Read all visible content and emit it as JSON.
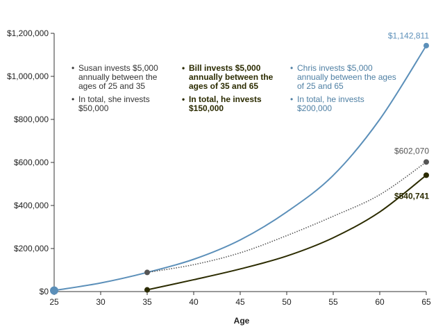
{
  "chart_data": {
    "type": "line",
    "title": "",
    "xlabel": "Age",
    "ylabel": "",
    "xlim": [
      25,
      65
    ],
    "ylim": [
      0,
      1200000
    ],
    "xticks": [
      "25",
      "30",
      "35",
      "40",
      "45",
      "50",
      "55",
      "60",
      "65"
    ],
    "yticks": [
      "$0",
      "$200,000",
      "$400,000",
      "$600,000",
      "$800,000",
      "$1,000,000",
      "$1,200,000"
    ],
    "grid": false,
    "series": [
      {
        "key": "chris",
        "color": "#5b8fb9",
        "style": "solid",
        "end_label": "$1,142,811",
        "x": [
          25,
          30,
          35,
          40,
          45,
          50,
          55,
          60,
          65
        ],
        "y": [
          5000,
          40000,
          89000,
          150000,
          240000,
          370000,
          540000,
          800000,
          1142811
        ]
      },
      {
        "key": "susan",
        "color": "#555555",
        "style": "dotted",
        "end_label": "$602,070",
        "x": [
          35,
          40,
          45,
          50,
          55,
          60,
          65
        ],
        "y": [
          89000,
          125000,
          180000,
          260000,
          350000,
          450000,
          602070
        ]
      },
      {
        "key": "bill",
        "color": "#2b2b00",
        "style": "solid",
        "end_label": "$540,741",
        "x": [
          35,
          40,
          45,
          50,
          55,
          60,
          65
        ],
        "y": [
          8000,
          55000,
          105000,
          165000,
          250000,
          370000,
          540741
        ]
      }
    ]
  },
  "legend": {
    "susan": [
      "Susan invests $5,000 annually between the ages of 25 and 35",
      "In total, she invests $50,000"
    ],
    "bill": [
      "Bill invests $5,000 annually between the ages of 35 and 65",
      "In total, he invests $150,000"
    ],
    "chris": [
      "Chris invests $5,000 annually between the ages of 25 and 65",
      "In total, he invests $200,000"
    ]
  }
}
